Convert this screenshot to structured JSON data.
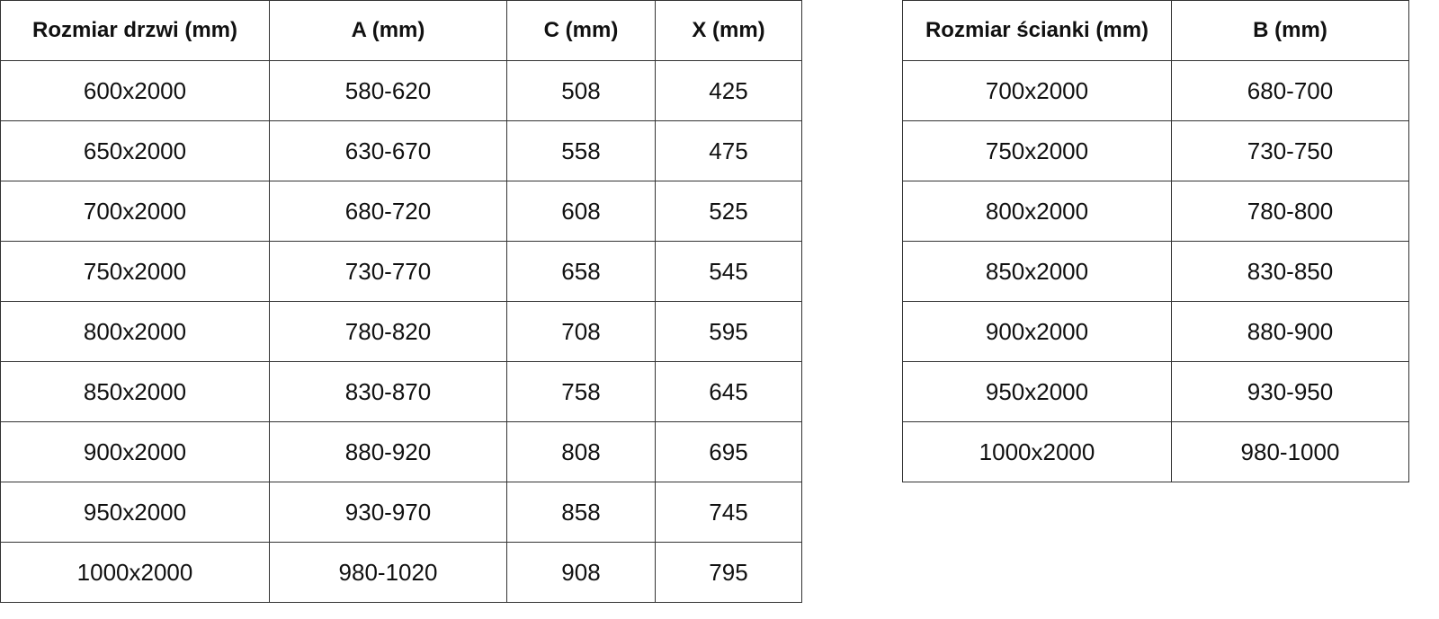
{
  "doors_table": {
    "headers": [
      "Rozmiar drzwi (mm)",
      "A (mm)",
      "C (mm)",
      "X (mm)"
    ],
    "rows": [
      [
        "600x2000",
        "580-620",
        "508",
        "425"
      ],
      [
        "650x2000",
        "630-670",
        "558",
        "475"
      ],
      [
        "700x2000",
        "680-720",
        "608",
        "525"
      ],
      [
        "750x2000",
        "730-770",
        "658",
        "545"
      ],
      [
        "800x2000",
        "780-820",
        "708",
        "595"
      ],
      [
        "850x2000",
        "830-870",
        "758",
        "645"
      ],
      [
        "900x2000",
        "880-920",
        "808",
        "695"
      ],
      [
        "950x2000",
        "930-970",
        "858",
        "745"
      ],
      [
        "1000x2000",
        "980-1020",
        "908",
        "795"
      ]
    ]
  },
  "walls_table": {
    "headers": [
      "Rozmiar ścianki (mm)",
      "B (mm)"
    ],
    "rows": [
      [
        "700x2000",
        "680-700"
      ],
      [
        "750x2000",
        "730-750"
      ],
      [
        "800x2000",
        "780-800"
      ],
      [
        "850x2000",
        "830-850"
      ],
      [
        "900x2000",
        "880-900"
      ],
      [
        "950x2000",
        "930-950"
      ],
      [
        "1000x2000",
        "980-1000"
      ]
    ]
  }
}
